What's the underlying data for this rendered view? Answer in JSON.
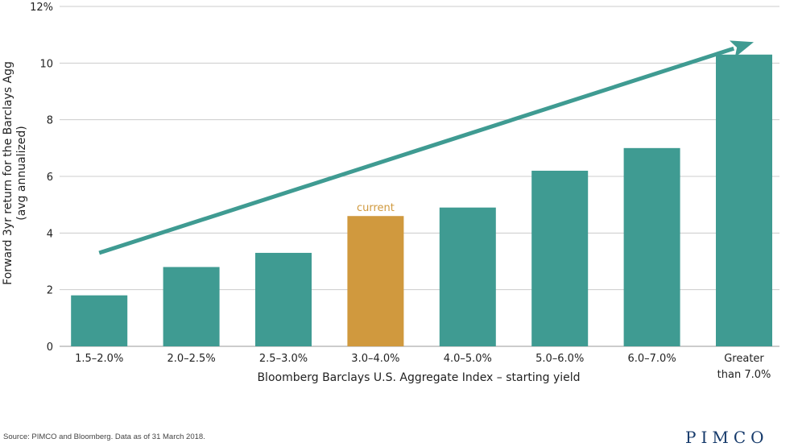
{
  "chart_data": {
    "type": "bar",
    "categories": [
      [
        "1.5–2.0%"
      ],
      [
        "2.0–2.5%"
      ],
      [
        "2.5–3.0%"
      ],
      [
        "3.0–4.0%"
      ],
      [
        "4.0–5.0%"
      ],
      [
        "5.0–6.0%"
      ],
      [
        "6.0–7.0%"
      ],
      [
        "Greater",
        "than 7.0%"
      ]
    ],
    "values": [
      1.8,
      2.8,
      3.3,
      4.6,
      4.9,
      6.2,
      7.0,
      10.3
    ],
    "highlight_index": 3,
    "highlight_label": "current",
    "ylim": [
      0,
      12
    ],
    "yticks": [
      0,
      2,
      4,
      6,
      8,
      10,
      12
    ],
    "ytick_labels": [
      "0",
      "2",
      "4",
      "6",
      "8",
      "10",
      "12%"
    ],
    "ylabel_lines": [
      "Forward 3yr return for the Barclays Agg",
      "(avg annualized)"
    ],
    "xlabel": "Bloomberg Barclays U.S. Aggregate Index – starting yield",
    "trend_arrow": {
      "from": [
        0,
        3.3
      ],
      "to": [
        7,
        10.4
      ]
    },
    "grid": true
  },
  "colors": {
    "bar": "#3f9b92",
    "highlight": "#d0993e",
    "arrow": "#3f9b92",
    "grid": "#cccccc"
  },
  "footer": {
    "source": "Source: PIMCO and Bloomberg. Data as of 31 March 2018.",
    "logo": "PIMCO"
  }
}
